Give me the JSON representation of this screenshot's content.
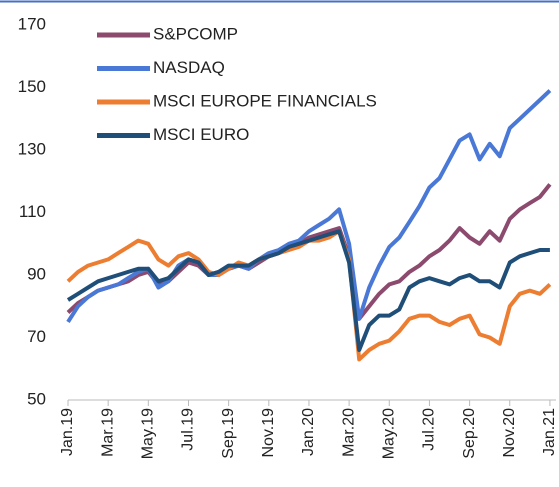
{
  "chart_data": {
    "type": "line",
    "categories": [
      "Jan.19",
      null,
      null,
      null,
      "Mar.19",
      null,
      null,
      null,
      "May.19",
      null,
      null,
      null,
      "Jul.19",
      null,
      null,
      null,
      "Sep.19",
      null,
      null,
      null,
      "Nov.19",
      null,
      null,
      null,
      "Jan.20",
      null,
      null,
      null,
      "Mar.20",
      null,
      null,
      null,
      "May.20",
      null,
      null,
      null,
      "Jul.20",
      null,
      null,
      null,
      "Sep.20",
      null,
      null,
      null,
      "Nov.20",
      null,
      null,
      null,
      "Jan.21"
    ],
    "series": [
      {
        "name": "S&PCOMP",
        "color": "#8b4a6e",
        "values": [
          78,
          81,
          83,
          85,
          86,
          87,
          88,
          90,
          91,
          87,
          88,
          91,
          94,
          93,
          90,
          91,
          92,
          93,
          92,
          94,
          96,
          97,
          99,
          100,
          102,
          103,
          104,
          105,
          96,
          76,
          80,
          84,
          87,
          88,
          91,
          93,
          96,
          98,
          101,
          105,
          102,
          100,
          104,
          101,
          108,
          111,
          113,
          115,
          119
        ]
      },
      {
        "name": "NASDAQ",
        "color": "#4a78d6",
        "values": [
          75,
          80,
          83,
          85,
          86,
          87,
          89,
          91,
          92,
          86,
          88,
          93,
          95,
          94,
          90,
          90,
          92,
          93,
          92,
          95,
          97,
          98,
          100,
          101,
          104,
          106,
          108,
          111,
          100,
          76,
          86,
          93,
          99,
          102,
          107,
          112,
          118,
          121,
          127,
          133,
          135,
          127,
          132,
          128,
          137,
          140,
          143,
          146,
          149
        ]
      },
      {
        "name": "MSCI EUROPE FINANCIALS",
        "color": "#ed7d31",
        "values": [
          88,
          91,
          93,
          94,
          95,
          97,
          99,
          101,
          100,
          95,
          93,
          96,
          97,
          95,
          91,
          90,
          92,
          94,
          93,
          95,
          96,
          97,
          98,
          99,
          101,
          101,
          102,
          104,
          95,
          63,
          66,
          68,
          69,
          72,
          76,
          77,
          77,
          75,
          74,
          76,
          77,
          71,
          70,
          68,
          80,
          84,
          85,
          84,
          87
        ]
      },
      {
        "name": "MSCI EURO",
        "color": "#1f4e79",
        "values": [
          82,
          84,
          86,
          88,
          89,
          90,
          91,
          92,
          92,
          88,
          89,
          92,
          95,
          94,
          90,
          91,
          93,
          93,
          93,
          95,
          96,
          97,
          99,
          100,
          101,
          102,
          103,
          104,
          94,
          66,
          74,
          77,
          77,
          79,
          86,
          88,
          89,
          88,
          87,
          89,
          90,
          88,
          88,
          86,
          94,
          96,
          97,
          98,
          98
        ]
      }
    ],
    "ylim": [
      50,
      170
    ],
    "yticks": [
      50,
      70,
      90,
      110,
      130,
      150,
      170
    ],
    "legend": "top-left"
  }
}
